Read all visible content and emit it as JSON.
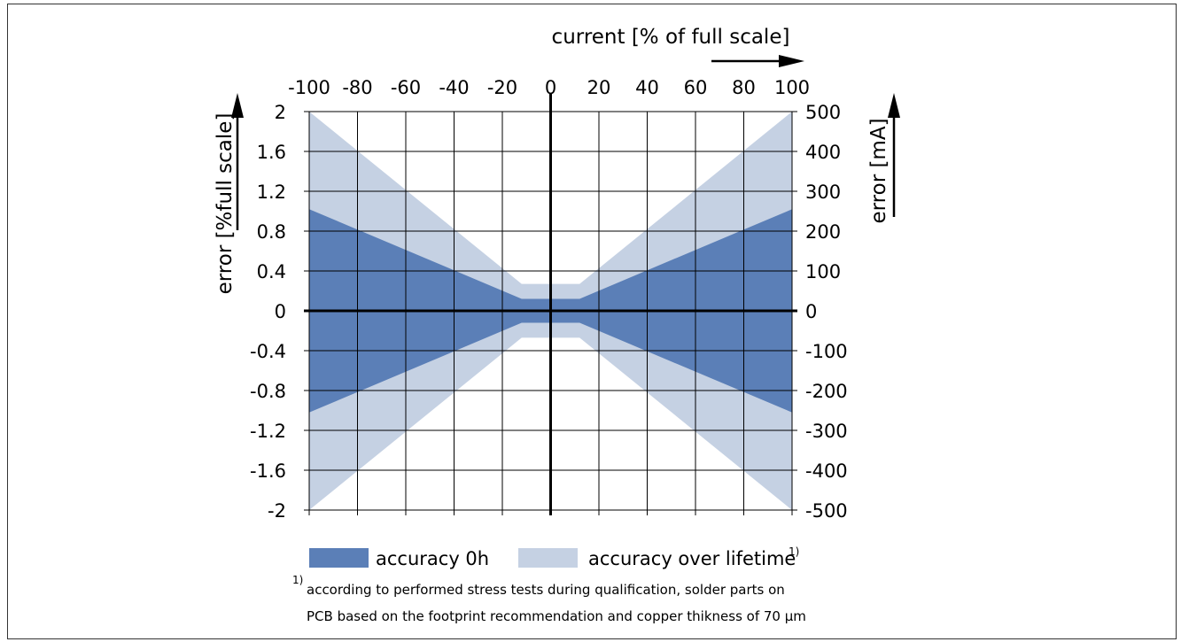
{
  "chart_data": {
    "type": "area",
    "title": "",
    "x_axis": {
      "label": "current [% of full scale]",
      "range": [
        -100,
        100
      ],
      "ticks": [
        -100,
        -80,
        -60,
        -40,
        -20,
        0,
        20,
        40,
        60,
        80,
        100
      ],
      "tick_labels": [
        "-100",
        "-80",
        "-60",
        "-40",
        "-20",
        "0",
        "20",
        "40",
        "60",
        "80",
        "100"
      ],
      "position": "top"
    },
    "y_axis_left": {
      "label": "error [%full scale]",
      "range": [
        -2,
        2
      ],
      "ticks": [
        2,
        1.6,
        1.2,
        0.8,
        0.4,
        0,
        -0.4,
        -0.8,
        -1.2,
        -1.6,
        -2
      ],
      "tick_labels": [
        "2",
        "1.6",
        "1.2",
        "0.8",
        "0.4",
        "0",
        "-0.4",
        "-0.8",
        "-1.2",
        "-1.6",
        "-2"
      ]
    },
    "y_axis_right": {
      "label": "error [mA]",
      "range": [
        -500,
        500
      ],
      "ticks": [
        500,
        400,
        300,
        200,
        100,
        0,
        -100,
        -200,
        -300,
        -400,
        -500
      ],
      "tick_labels": [
        "500",
        "400",
        "300",
        "200",
        "100",
        "0",
        "-100",
        "-200",
        "-300",
        "-400",
        "-500"
      ]
    },
    "grid": true,
    "series": [
      {
        "name": "accuracy over lifetime",
        "color": "#c5d1e3",
        "x": [
          -100,
          -12,
          12,
          100
        ],
        "upper": [
          2,
          0.27,
          0.27,
          2
        ],
        "lower": [
          -2,
          -0.27,
          -0.27,
          -2
        ]
      },
      {
        "name": "accuracy 0h",
        "color": "#5b7fb7",
        "x": [
          -100,
          -12,
          12,
          100
        ],
        "upper": [
          1.02,
          0.12,
          0.12,
          1.02
        ],
        "lower": [
          -1.02,
          -0.12,
          -0.12,
          -1.02
        ]
      }
    ],
    "legend": {
      "placement": "bottom",
      "items": [
        {
          "label": "accuracy 0h",
          "color": "#5b7fb7"
        },
        {
          "label": "accuracy over lifetime",
          "superscript": "1)",
          "color": "#c5d1e3"
        }
      ]
    },
    "footnote": {
      "marker": "1)",
      "line1": "according to performed stress tests during qualification, solder parts on",
      "line2": "PCB based on the footprint recommendation and copper thikness of 70 µm"
    }
  }
}
